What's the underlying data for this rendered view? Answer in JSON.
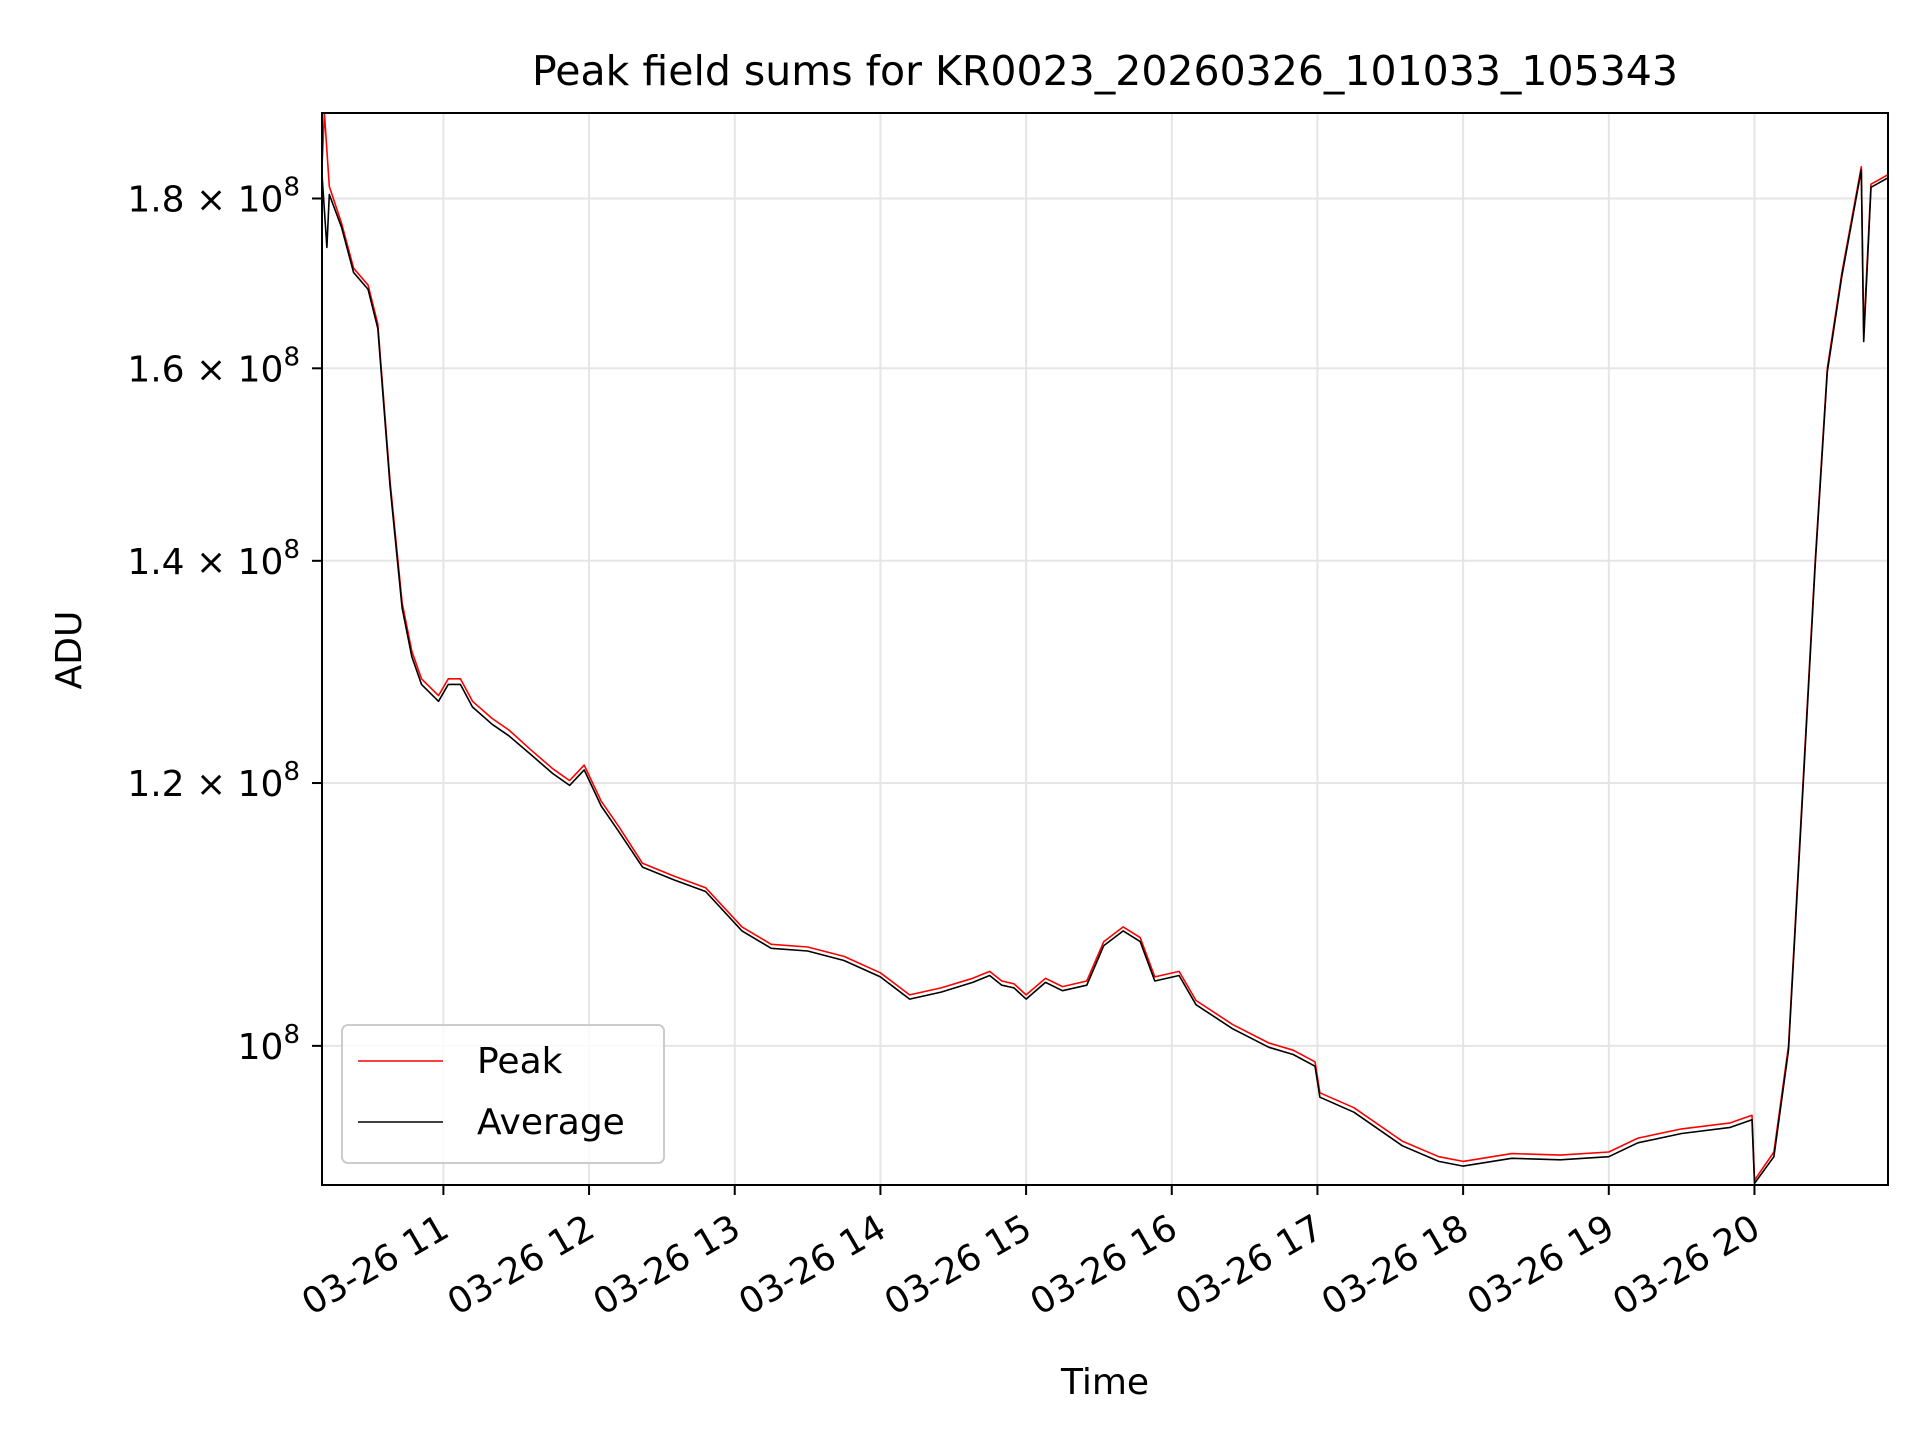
{
  "chart_data": {
    "type": "line",
    "title": "Peak field sums for KR0023_20260326_101033_105343",
    "xlabel": "Time",
    "ylabel": "ADU",
    "yscale": "log",
    "grid": true,
    "legend_position": "lower-left",
    "xlim": [
      "2026-03-26 10:10",
      "2026-03-26 20:55"
    ],
    "ylim": [
      90800000,
      191000000
    ],
    "x_ticks": [
      "03-26 11",
      "03-26 12",
      "03-26 13",
      "03-26 14",
      "03-26 15",
      "03-26 16",
      "03-26 17",
      "03-26 18",
      "03-26 19",
      "03-26 20"
    ],
    "y_ticks": [
      {
        "value": 100000000,
        "mantissa": "",
        "exponent": "8"
      },
      {
        "value": 120000000,
        "mantissa": "1.2",
        "exponent": "8"
      },
      {
        "value": 140000000,
        "mantissa": "1.4",
        "exponent": "8"
      },
      {
        "value": 160000000,
        "mantissa": "1.6",
        "exponent": "8"
      },
      {
        "value": 180000000,
        "mantissa": "1.8",
        "exponent": "8"
      }
    ],
    "series": [
      {
        "name": "Peak",
        "color": "#ff0000",
        "points": [
          [
            "2026-03-26 10:10",
            184000000
          ],
          [
            "2026-03-26 10:11",
            191000000
          ],
          [
            "2026-03-26 10:13",
            181500000
          ],
          [
            "2026-03-26 10:18",
            177000000
          ],
          [
            "2026-03-26 10:23",
            171500000
          ],
          [
            "2026-03-26 10:29",
            169500000
          ],
          [
            "2026-03-26 10:33",
            165000000
          ],
          [
            "2026-03-26 10:38",
            148000000
          ],
          [
            "2026-03-26 10:43",
            136000000
          ],
          [
            "2026-03-26 10:47",
            131500000
          ],
          [
            "2026-03-26 10:51",
            129000000
          ],
          [
            "2026-03-26 10:58",
            127500000
          ],
          [
            "2026-03-26 11:02",
            129000000
          ],
          [
            "2026-03-26 11:07",
            129000000
          ],
          [
            "2026-03-26 11:12",
            127000000
          ],
          [
            "2026-03-26 11:20",
            125500000
          ],
          [
            "2026-03-26 11:27",
            124500000
          ],
          [
            "2026-03-26 11:36",
            122800000
          ],
          [
            "2026-03-26 11:45",
            121200000
          ],
          [
            "2026-03-26 11:52",
            120200000
          ],
          [
            "2026-03-26 11:58",
            121500000
          ],
          [
            "2026-03-26 12:05",
            118500000
          ],
          [
            "2026-03-26 12:12",
            116500000
          ],
          [
            "2026-03-26 12:22",
            113500000
          ],
          [
            "2026-03-26 12:35",
            112500000
          ],
          [
            "2026-03-26 12:48",
            111600000
          ],
          [
            "2026-03-26 13:03",
            108600000
          ],
          [
            "2026-03-26 13:15",
            107300000
          ],
          [
            "2026-03-26 13:30",
            107100000
          ],
          [
            "2026-03-26 13:45",
            106400000
          ],
          [
            "2026-03-26 14:00",
            105200000
          ],
          [
            "2026-03-26 14:12",
            103600000
          ],
          [
            "2026-03-26 14:25",
            104100000
          ],
          [
            "2026-03-26 14:38",
            104800000
          ],
          [
            "2026-03-26 14:45",
            105300000
          ],
          [
            "2026-03-26 14:50",
            104600000
          ],
          [
            "2026-03-26 14:55",
            104400000
          ],
          [
            "2026-03-26 15:00",
            103600000
          ],
          [
            "2026-03-26 15:08",
            104800000
          ],
          [
            "2026-03-26 15:15",
            104200000
          ],
          [
            "2026-03-26 15:25",
            104600000
          ],
          [
            "2026-03-26 15:32",
            107500000
          ],
          [
            "2026-03-26 15:40",
            108600000
          ],
          [
            "2026-03-26 15:47",
            107800000
          ],
          [
            "2026-03-26 15:53",
            104900000
          ],
          [
            "2026-03-26 16:03",
            105300000
          ],
          [
            "2026-03-26 16:10",
            103200000
          ],
          [
            "2026-03-26 16:25",
            101500000
          ],
          [
            "2026-03-26 16:40",
            100200000
          ],
          [
            "2026-03-26 16:50",
            99700000
          ],
          [
            "2026-03-26 16:59",
            98900000
          ],
          [
            "2026-03-26 17:01",
            96800000
          ],
          [
            "2026-03-26 17:15",
            95800000
          ],
          [
            "2026-03-26 17:35",
            93600000
          ],
          [
            "2026-03-26 17:50",
            92600000
          ],
          [
            "2026-03-26 18:00",
            92300000
          ],
          [
            "2026-03-26 18:20",
            92800000
          ],
          [
            "2026-03-26 18:40",
            92700000
          ],
          [
            "2026-03-26 19:00",
            92900000
          ],
          [
            "2026-03-26 19:12",
            93800000
          ],
          [
            "2026-03-26 19:30",
            94400000
          ],
          [
            "2026-03-26 19:50",
            94800000
          ],
          [
            "2026-03-26 19:59",
            95300000
          ],
          [
            "2026-03-26 20:00",
            91100000
          ],
          [
            "2026-03-26 20:08",
            92900000
          ],
          [
            "2026-03-26 20:14",
            100000000
          ],
          [
            "2026-03-26 20:20",
            120000000
          ],
          [
            "2026-03-26 20:25",
            140000000
          ],
          [
            "2026-03-26 20:30",
            160000000
          ],
          [
            "2026-03-26 20:36",
            171000000
          ],
          [
            "2026-03-26 20:44",
            184000000
          ],
          [
            "2026-03-26 20:45",
            164000000
          ],
          [
            "2026-03-26 20:48",
            181800000
          ],
          [
            "2026-03-26 20:55",
            183000000
          ]
        ]
      },
      {
        "name": "Average",
        "color": "#000000",
        "points": [
          [
            "2026-03-26 10:10",
            183000000
          ],
          [
            "2026-03-26 10:12",
            174000000
          ],
          [
            "2026-03-26 10:13",
            180500000
          ],
          [
            "2026-03-26 10:18",
            176500000
          ],
          [
            "2026-03-26 10:23",
            171000000
          ],
          [
            "2026-03-26 10:29",
            169000000
          ],
          [
            "2026-03-26 10:33",
            164500000
          ],
          [
            "2026-03-26 10:38",
            147500000
          ],
          [
            "2026-03-26 10:43",
            135500000
          ],
          [
            "2026-03-26 10:47",
            131000000
          ],
          [
            "2026-03-26 10:51",
            128500000
          ],
          [
            "2026-03-26 10:58",
            127000000
          ],
          [
            "2026-03-26 11:02",
            128500000
          ],
          [
            "2026-03-26 11:07",
            128500000
          ],
          [
            "2026-03-26 11:12",
            126500000
          ],
          [
            "2026-03-26 11:20",
            125000000
          ],
          [
            "2026-03-26 11:27",
            124000000
          ],
          [
            "2026-03-26 11:36",
            122400000
          ],
          [
            "2026-03-26 11:45",
            120800000
          ],
          [
            "2026-03-26 11:52",
            119800000
          ],
          [
            "2026-03-26 11:58",
            121100000
          ],
          [
            "2026-03-26 12:05",
            118100000
          ],
          [
            "2026-03-26 12:12",
            116100000
          ],
          [
            "2026-03-26 12:22",
            113200000
          ],
          [
            "2026-03-26 12:35",
            112200000
          ],
          [
            "2026-03-26 12:48",
            111300000
          ],
          [
            "2026-03-26 13:03",
            108300000
          ],
          [
            "2026-03-26 13:15",
            107000000
          ],
          [
            "2026-03-26 13:30",
            106800000
          ],
          [
            "2026-03-26 13:45",
            106100000
          ],
          [
            "2026-03-26 14:00",
            104900000
          ],
          [
            "2026-03-26 14:12",
            103300000
          ],
          [
            "2026-03-26 14:25",
            103800000
          ],
          [
            "2026-03-26 14:38",
            104500000
          ],
          [
            "2026-03-26 14:45",
            105000000
          ],
          [
            "2026-03-26 14:50",
            104300000
          ],
          [
            "2026-03-26 14:55",
            104100000
          ],
          [
            "2026-03-26 15:00",
            103300000
          ],
          [
            "2026-03-26 15:08",
            104500000
          ],
          [
            "2026-03-26 15:15",
            103900000
          ],
          [
            "2026-03-26 15:25",
            104300000
          ],
          [
            "2026-03-26 15:32",
            107200000
          ],
          [
            "2026-03-26 15:40",
            108300000
          ],
          [
            "2026-03-26 15:47",
            107500000
          ],
          [
            "2026-03-26 15:53",
            104600000
          ],
          [
            "2026-03-26 16:03",
            105000000
          ],
          [
            "2026-03-26 16:10",
            102900000
          ],
          [
            "2026-03-26 16:25",
            101200000
          ],
          [
            "2026-03-26 16:40",
            99900000
          ],
          [
            "2026-03-26 16:50",
            99400000
          ],
          [
            "2026-03-26 16:59",
            98600000
          ],
          [
            "2026-03-26 17:01",
            96500000
          ],
          [
            "2026-03-26 17:15",
            95500000
          ],
          [
            "2026-03-26 17:35",
            93300000
          ],
          [
            "2026-03-26 17:50",
            92300000
          ],
          [
            "2026-03-26 18:00",
            92000000
          ],
          [
            "2026-03-26 18:20",
            92500000
          ],
          [
            "2026-03-26 18:40",
            92400000
          ],
          [
            "2026-03-26 19:00",
            92600000
          ],
          [
            "2026-03-26 19:12",
            93500000
          ],
          [
            "2026-03-26 19:30",
            94100000
          ],
          [
            "2026-03-26 19:50",
            94500000
          ],
          [
            "2026-03-26 19:59",
            95000000
          ],
          [
            "2026-03-26 20:00",
            90900000
          ],
          [
            "2026-03-26 20:08",
            92600000
          ],
          [
            "2026-03-26 20:14",
            99700000
          ],
          [
            "2026-03-26 20:20",
            119600000
          ],
          [
            "2026-03-26 20:25",
            139600000
          ],
          [
            "2026-03-26 20:30",
            159600000
          ],
          [
            "2026-03-26 20:36",
            170600000
          ],
          [
            "2026-03-26 20:44",
            183600000
          ],
          [
            "2026-03-26 20:45",
            163000000
          ],
          [
            "2026-03-26 20:48",
            181400000
          ],
          [
            "2026-03-26 20:55",
            182600000
          ]
        ]
      }
    ]
  }
}
